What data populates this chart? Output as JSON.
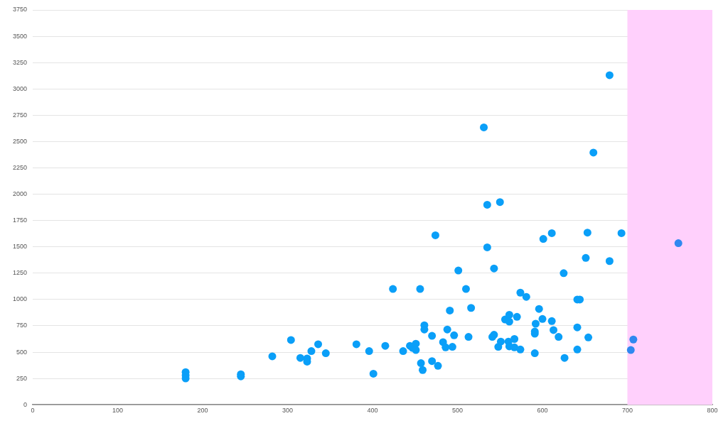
{
  "chart_data": {
    "type": "scatter",
    "marker": "circle",
    "grid": "y",
    "legend": false,
    "xlim": [
      0,
      800
    ],
    "xticks": [
      0,
      100,
      200,
      300,
      400,
      500,
      600,
      700,
      800
    ],
    "ylim": [
      0,
      3750
    ],
    "yticks": [
      0,
      250,
      500,
      750,
      1000,
      1250,
      1500,
      1750,
      2000,
      2250,
      2500,
      2750,
      3000,
      3250,
      3500,
      3750
    ],
    "bands": [
      {
        "axis": "x",
        "from": 700,
        "to": 800,
        "color": "#ffd0fc"
      }
    ],
    "series": [
      {
        "color": "#0a9ff8",
        "x": [
          180,
          180,
          180,
          245,
          245,
          282,
          304,
          315,
          323,
          323,
          328,
          336,
          345,
          381,
          396,
          401,
          415,
          424,
          436,
          444,
          447,
          451,
          451,
          456,
          457,
          459,
          461,
          461,
          470,
          470,
          474,
          477,
          483,
          486,
          488,
          491,
          494,
          496,
          501,
          510,
          513,
          516,
          531,
          535,
          535,
          541,
          543,
          543,
          548,
          550,
          551,
          556,
          560,
          561,
          561,
          561,
          567,
          567,
          570,
          574,
          574,
          581,
          591,
          591,
          591,
          592,
          596,
          600,
          601,
          611,
          611,
          613,
          619,
          625,
          626,
          641,
          641,
          641,
          644,
          651,
          653,
          654,
          660,
          679,
          679,
          693
        ],
        "values": [
          310,
          280,
          250,
          290,
          270,
          460,
          615,
          445,
          440,
          410,
          510,
          575,
          490,
          575,
          510,
          295,
          560,
          1100,
          510,
          560,
          540,
          580,
          520,
          1100,
          395,
          330,
          755,
          715,
          655,
          415,
          1610,
          370,
          595,
          545,
          715,
          895,
          550,
          660,
          1275,
          1100,
          645,
          920,
          2635,
          1900,
          1495,
          645,
          665,
          1295,
          550,
          1925,
          600,
          810,
          600,
          855,
          790,
          555,
          625,
          545,
          835,
          525,
          1065,
          1025,
          675,
          695,
          490,
          770,
          910,
          815,
          1575,
          795,
          1630,
          710,
          645,
          1250,
          445,
          1000,
          735,
          525,
          1000,
          1395,
          1635,
          640,
          2395,
          3130,
          1365,
          1630
        ]
      },
      {
        "color": "#2f88f0",
        "x": [
          704,
          707,
          760
        ],
        "values": [
          520,
          620,
          1535
        ]
      }
    ]
  }
}
